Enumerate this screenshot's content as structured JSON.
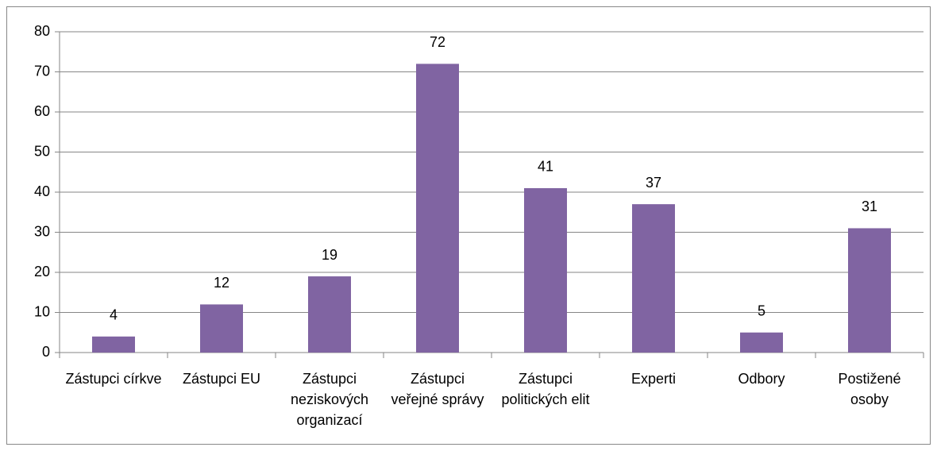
{
  "chart_data": {
    "type": "bar",
    "categories": [
      "Zástupci církve",
      "Zástupci EU",
      "Zástupci neziskových organizací",
      "Zástupci veřejné správy",
      "Zástupci politických elit",
      "Experti",
      "Odbory",
      "Postižené osoby"
    ],
    "values": [
      4,
      12,
      19,
      72,
      41,
      37,
      5,
      31
    ],
    "color": "#8064a2",
    "ylim": [
      0,
      80
    ],
    "yticks": [
      0,
      10,
      20,
      30,
      40,
      50,
      60,
      70,
      80
    ],
    "grid": true
  }
}
